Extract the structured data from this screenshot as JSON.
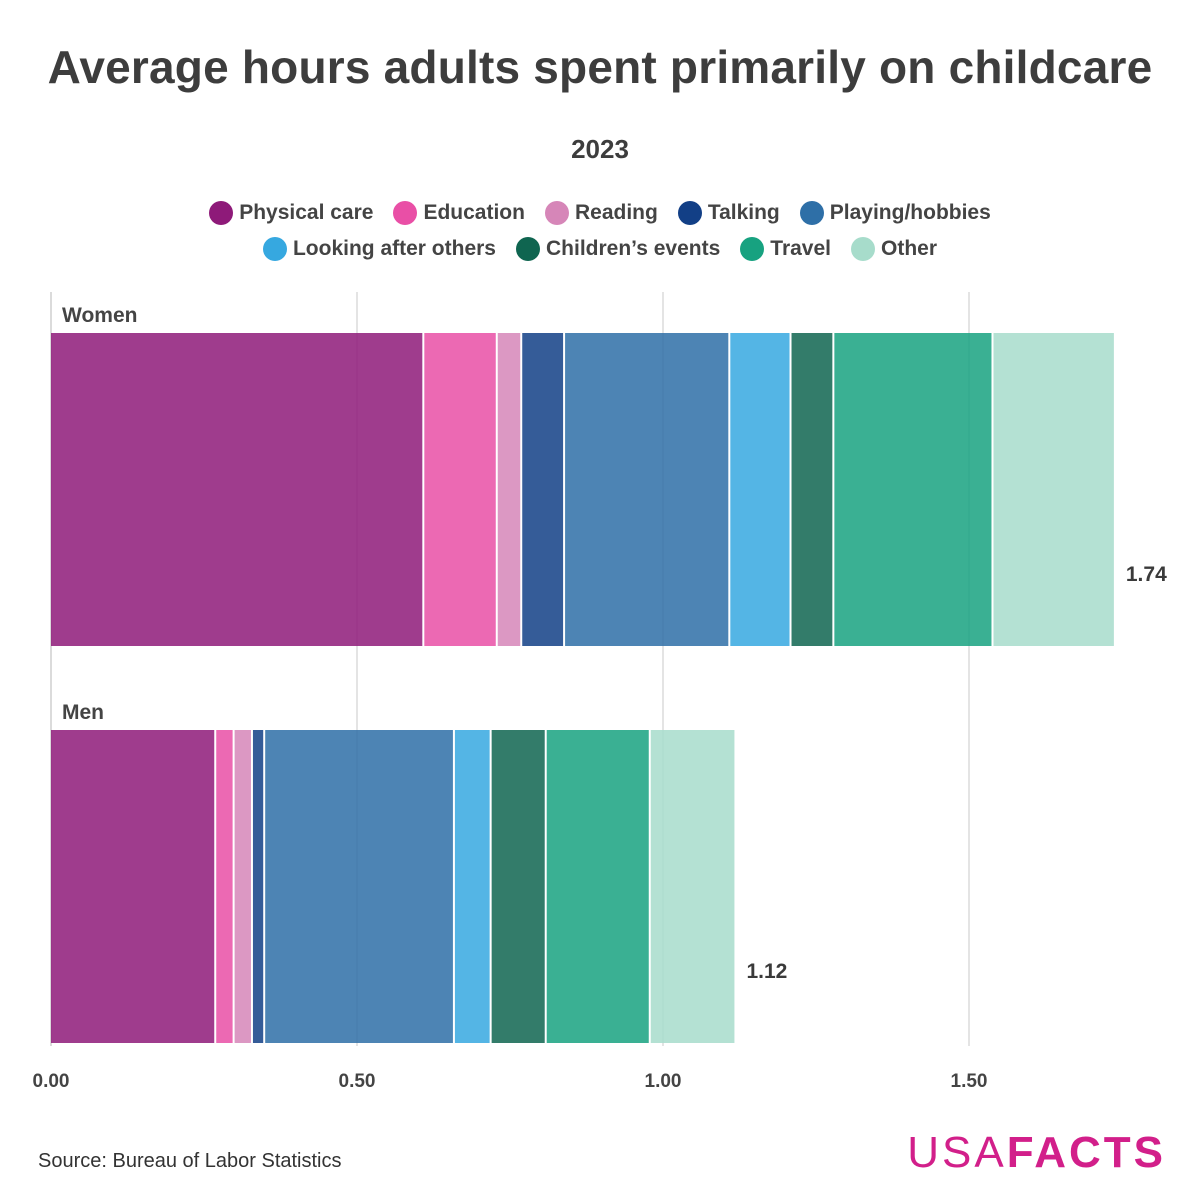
{
  "title": "Average hours adults spent primarily on childcare",
  "subtitle": "2023",
  "source": "Source: Bureau of Labor Statistics",
  "brand": {
    "usa": "USA",
    "facts": "FACTS"
  },
  "legend_row1": [
    {
      "label": "Physical care",
      "color": "#8e1a79"
    },
    {
      "label": "Education",
      "color": "#e94fa6"
    },
    {
      "label": "Reading",
      "color": "#d686b8"
    },
    {
      "label": "Talking",
      "color": "#123f86"
    },
    {
      "label": "Playing/hobbies",
      "color": "#2e6fa7"
    }
  ],
  "legend_row2": [
    {
      "label": "Looking after others",
      "color": "#36a8e0"
    },
    {
      "label": "Children’s events",
      "color": "#0f6550"
    },
    {
      "label": "Travel",
      "color": "#17a280"
    },
    {
      "label": "Other",
      "color": "#a7dccb"
    }
  ],
  "chart_data": {
    "type": "bar",
    "orientation": "horizontal",
    "stacked": true,
    "title": "Average hours adults spent primarily on childcare",
    "subtitle": "2023",
    "xlim": [
      0,
      1.75
    ],
    "xticks": [
      0.0,
      0.5,
      1.0,
      1.5
    ],
    "xtick_labels": [
      "0.00",
      "0.50",
      "1.00",
      "1.50"
    ],
    "categories": [
      "Women",
      "Men"
    ],
    "totals": [
      1.74,
      1.12
    ],
    "total_labels": [
      "1.74",
      "1.12"
    ],
    "series": [
      {
        "name": "Physical care",
        "color": "#8e1a79",
        "values": [
          0.61,
          0.27
        ]
      },
      {
        "name": "Education",
        "color": "#e94fa6",
        "values": [
          0.12,
          0.03
        ]
      },
      {
        "name": "Reading",
        "color": "#d686b8",
        "values": [
          0.04,
          0.03
        ]
      },
      {
        "name": "Talking",
        "color": "#123f86",
        "values": [
          0.07,
          0.02
        ]
      },
      {
        "name": "Playing/hobbies",
        "color": "#2e6fa7",
        "values": [
          0.27,
          0.31
        ]
      },
      {
        "name": "Looking after others",
        "color": "#36a8e0",
        "values": [
          0.1,
          0.06
        ]
      },
      {
        "name": "Children’s events",
        "color": "#0f6550",
        "values": [
          0.07,
          0.09
        ]
      },
      {
        "name": "Travel",
        "color": "#17a280",
        "values": [
          0.26,
          0.17
        ]
      },
      {
        "name": "Other",
        "color": "#a7dccb",
        "values": [
          0.2,
          0.14
        ]
      }
    ]
  }
}
